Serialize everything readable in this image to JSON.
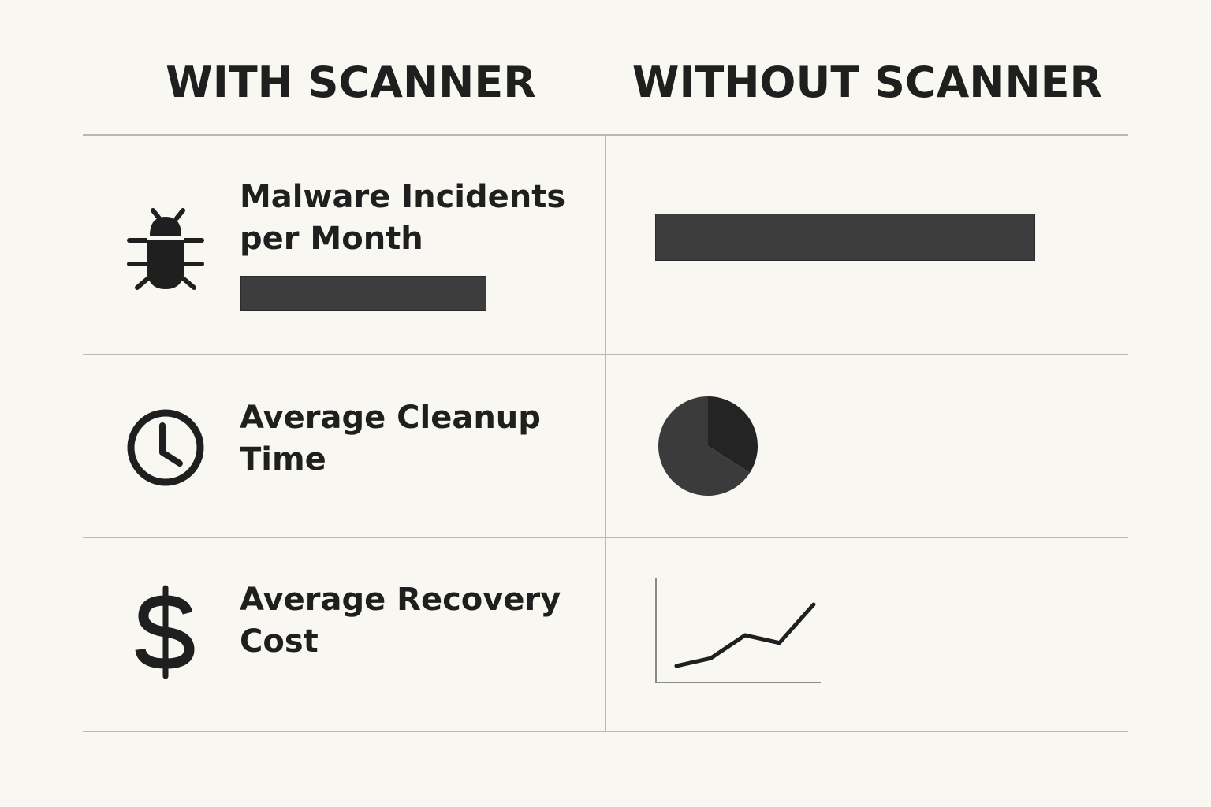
{
  "headers": {
    "with": "WITH SCANNER",
    "without": "WITHOUT SCANNER"
  },
  "rows": [
    {
      "icon": "bug-icon",
      "label_lines": [
        "Malware Incidents",
        "per Month"
      ],
      "with_bar_fraction": 0.8,
      "without_bar_fraction": 0.86
    },
    {
      "icon": "clock-icon",
      "label_lines": [
        "Average Cleanup",
        "Time"
      ],
      "without_pie": {
        "type": "pie",
        "slices": [
          {
            "value": 0.34,
            "color": "#242424"
          },
          {
            "value": 0.66,
            "color": "#3b3b3b"
          }
        ]
      }
    },
    {
      "icon": "dollar-icon",
      "label_lines": [
        "Average Recovery",
        "Cost"
      ],
      "without_line": {
        "type": "line",
        "x": [
          0,
          1,
          2,
          3,
          4
        ],
        "y": [
          1,
          2,
          5,
          4,
          9
        ],
        "color": "#1f1f1f"
      }
    }
  ],
  "colors": {
    "background": "#f8f7f2",
    "ink": "#1f1f1f",
    "bar": "#3d3d3d",
    "divider": "#b8b8b5"
  }
}
